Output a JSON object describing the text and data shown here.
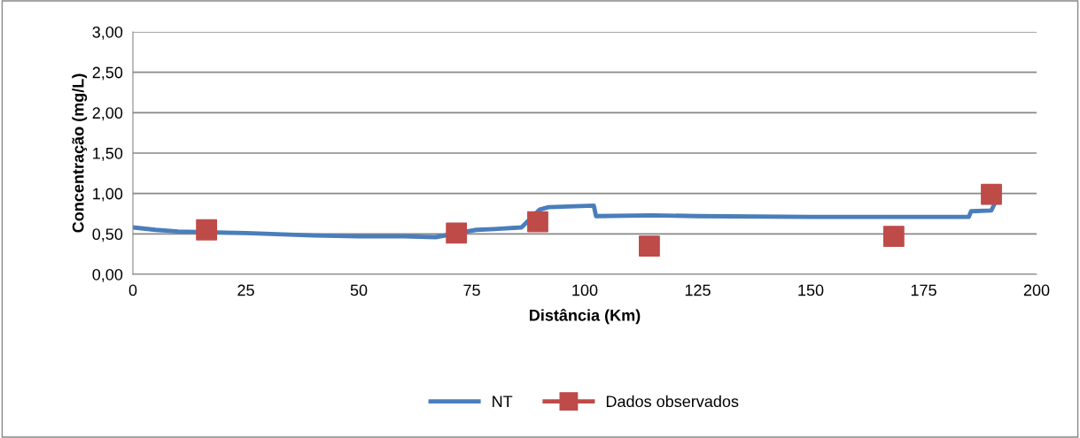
{
  "chart_data": {
    "type": "line",
    "xlabel": "Distância (Km)",
    "ylabel": "Concentração (mg/L)",
    "xlim": [
      0,
      200
    ],
    "xticks": [
      0,
      25,
      50,
      75,
      100,
      125,
      150,
      175,
      200
    ],
    "ylim": [
      0,
      3
    ],
    "yticks": [
      {
        "value": 0,
        "label": "0,00"
      },
      {
        "value": 0.5,
        "label": "0,50"
      },
      {
        "value": 1,
        "label": "1,00"
      },
      {
        "value": 1.5,
        "label": "1,50"
      },
      {
        "value": 2,
        "label": "2,00"
      },
      {
        "value": 2.5,
        "label": "2,50"
      },
      {
        "value": 3,
        "label": "3,00"
      }
    ],
    "grid": "y",
    "legend": "bottom",
    "series": [
      {
        "name": "NT",
        "color": "#4a7ebb",
        "marker": "none",
        "x": [
          0,
          5,
          10,
          25,
          40,
          50,
          60,
          67,
          76,
          80,
          86,
          90,
          92,
          102,
          102.5,
          115,
          125,
          150,
          175,
          185,
          185.5,
          190,
          190.5
        ],
        "values": [
          0.58,
          0.55,
          0.53,
          0.51,
          0.48,
          0.47,
          0.47,
          0.46,
          0.55,
          0.56,
          0.58,
          0.8,
          0.83,
          0.85,
          0.72,
          0.73,
          0.72,
          0.71,
          0.71,
          0.71,
          0.78,
          0.79,
          0.85
        ]
      },
      {
        "name": "Dados observados",
        "type": "scatter",
        "color": "#be4b48",
        "marker": "square",
        "x": [
          16.3,
          71.6,
          89.6,
          114.3,
          168.4,
          190
        ],
        "values": [
          0.55,
          0.51,
          0.65,
          0.35,
          0.47,
          0.99
        ]
      }
    ]
  }
}
